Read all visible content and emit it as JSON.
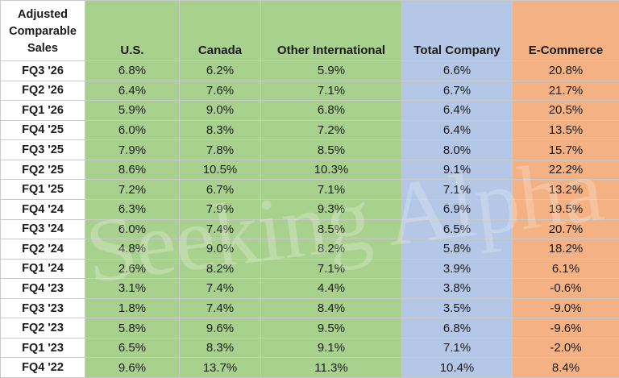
{
  "chart_data": {
    "type": "table",
    "corner_header": "Adjusted Comparable Sales",
    "columns": [
      "U.S.",
      "Canada",
      "Other International",
      "Total Company",
      "E-Commerce"
    ],
    "column_colors": [
      "#a9d18e",
      "#a9d18e",
      "#a9d18e",
      "#b4c7e7",
      "#f4b183"
    ],
    "rows": [
      {
        "label": "FQ3 '26",
        "values": [
          "6.8%",
          "6.2%",
          "5.9%",
          "6.6%",
          "20.8%"
        ]
      },
      {
        "label": "FQ2 '26",
        "values": [
          "6.4%",
          "7.6%",
          "7.1%",
          "6.7%",
          "21.7%"
        ]
      },
      {
        "label": "FQ1 '26",
        "values": [
          "5.9%",
          "9.0%",
          "6.8%",
          "6.4%",
          "20.5%"
        ]
      },
      {
        "label": "FQ4 '25",
        "values": [
          "6.0%",
          "8.3%",
          "7.2%",
          "6.4%",
          "13.5%"
        ]
      },
      {
        "label": "FQ3 '25",
        "values": [
          "7.9%",
          "7.8%",
          "8.5%",
          "8.0%",
          "15.7%"
        ]
      },
      {
        "label": "FQ2 '25",
        "values": [
          "8.6%",
          "10.5%",
          "10.3%",
          "9.1%",
          "22.2%"
        ]
      },
      {
        "label": "FQ1 '25",
        "values": [
          "7.2%",
          "6.7%",
          "7.1%",
          "7.1%",
          "13.2%"
        ]
      },
      {
        "label": "FQ4 '24",
        "values": [
          "6.3%",
          "7.9%",
          "9.3%",
          "6.9%",
          "19.5%"
        ]
      },
      {
        "label": "FQ3 '24",
        "values": [
          "6.0%",
          "7.4%",
          "8.5%",
          "6.5%",
          "20.7%"
        ]
      },
      {
        "label": "FQ2 '24",
        "values": [
          "4.8%",
          "9.0%",
          "8.2%",
          "5.8%",
          "18.2%"
        ]
      },
      {
        "label": "FQ1 '24",
        "values": [
          "2.6%",
          "8.2%",
          "7.1%",
          "3.9%",
          "6.1%"
        ]
      },
      {
        "label": "FQ4 '23",
        "values": [
          "3.1%",
          "7.4%",
          "4.4%",
          "3.8%",
          "-0.6%"
        ]
      },
      {
        "label": "FQ3 '23",
        "values": [
          "1.8%",
          "7.4%",
          "8.4%",
          "3.5%",
          "-9.0%"
        ]
      },
      {
        "label": "FQ2 '23",
        "values": [
          "5.8%",
          "9.6%",
          "9.5%",
          "6.8%",
          "-9.6%"
        ]
      },
      {
        "label": "FQ1 '23",
        "values": [
          "6.5%",
          "8.3%",
          "9.1%",
          "7.1%",
          "-2.0%"
        ]
      },
      {
        "label": "FQ4 '22",
        "values": [
          "9.6%",
          "13.7%",
          "11.3%",
          "10.4%",
          "8.4%"
        ]
      }
    ]
  },
  "watermark": "Seeking Alpha α"
}
